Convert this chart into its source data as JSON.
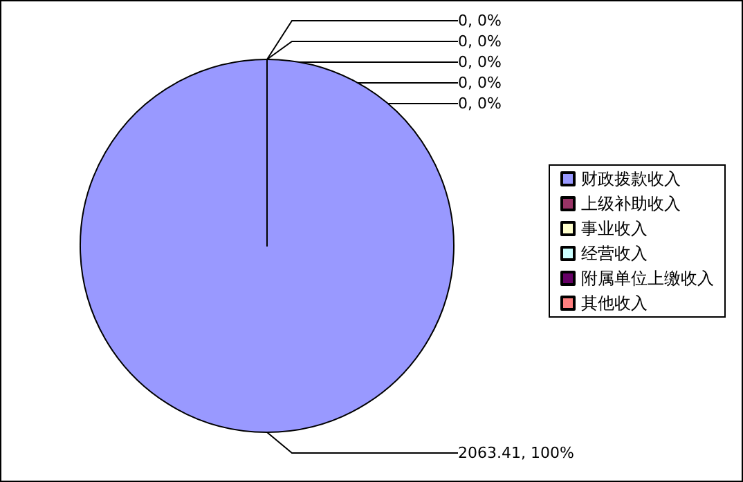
{
  "chart_data": {
    "type": "pie",
    "categories": [
      "财政拨款收入",
      "上级补助收入",
      "事业收入",
      "经营收入",
      "附属单位上缴收入",
      "其他收入"
    ],
    "values": [
      2063.41,
      0,
      0,
      0,
      0,
      0
    ],
    "colors": [
      "#9999ff",
      "#993366",
      "#ffffcc",
      "#ccffff",
      "#660066",
      "#ff8080"
    ],
    "value_labels": [
      "2063.41, 100%",
      "0, 0%",
      "0, 0%",
      "0, 0%",
      "0, 0%",
      "0, 0%"
    ],
    "legend": "right"
  }
}
